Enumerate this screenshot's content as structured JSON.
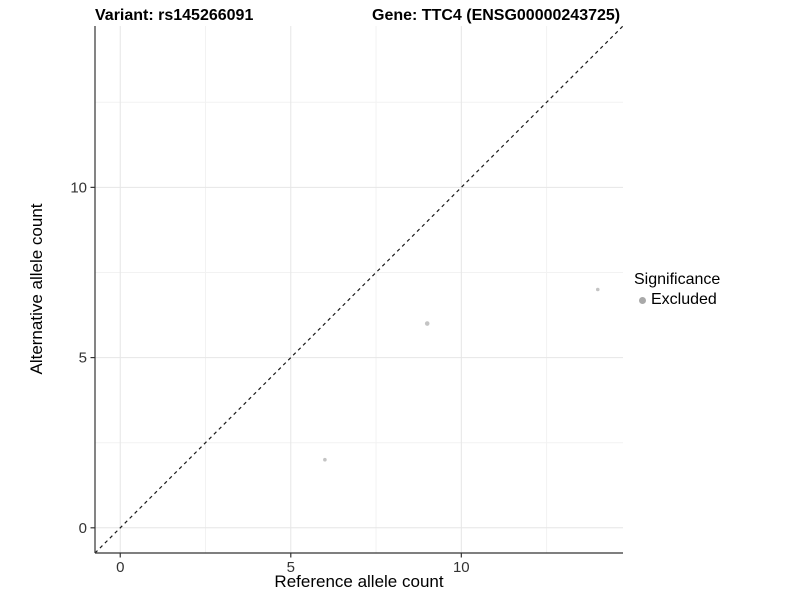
{
  "titles": {
    "variant": "Variant: rs145266091",
    "gene": "Gene: TTC4 (ENSG00000243725)"
  },
  "axes": {
    "x_label": "Reference allele count",
    "y_label": "Alternative allele count"
  },
  "legend": {
    "title": "Significance",
    "items": [
      {
        "label": "Excluded",
        "color": "#a9a9a9"
      }
    ]
  },
  "colors": {
    "background": "#ffffff",
    "axis_line": "#333333",
    "tick_mark": "#333333",
    "tick_label": "#333333",
    "grid_major": "#e6e6e6",
    "grid_minor": "#f2f2f2",
    "point_fill": "#c4c4c4",
    "reference_line": "#1a1a1a"
  },
  "chart_data": {
    "type": "scatter",
    "title": "Variant: rs145266091 — Gene: TTC4 (ENSG00000243725)",
    "xlabel": "Reference allele count",
    "ylabel": "Alternative allele count",
    "xlim": [
      -0.74,
      14.74
    ],
    "ylim": [
      -0.74,
      14.74
    ],
    "x_ticks": [
      0,
      5,
      10
    ],
    "y_ticks": [
      0,
      5,
      10
    ],
    "minor_ticks": [
      2.5,
      7.5,
      12.5
    ],
    "grid": true,
    "legend_position": "right",
    "series": [
      {
        "name": "Excluded",
        "color": "#c4c4c4",
        "points": [
          {
            "x": 6,
            "y": 2,
            "size": 1.8
          },
          {
            "x": 9,
            "y": 6,
            "size": 2.3
          },
          {
            "x": 14,
            "y": 7,
            "size": 1.8
          }
        ]
      }
    ],
    "reference_line": {
      "type": "identity",
      "style": "dashed",
      "slope": 1,
      "intercept": 0
    }
  }
}
